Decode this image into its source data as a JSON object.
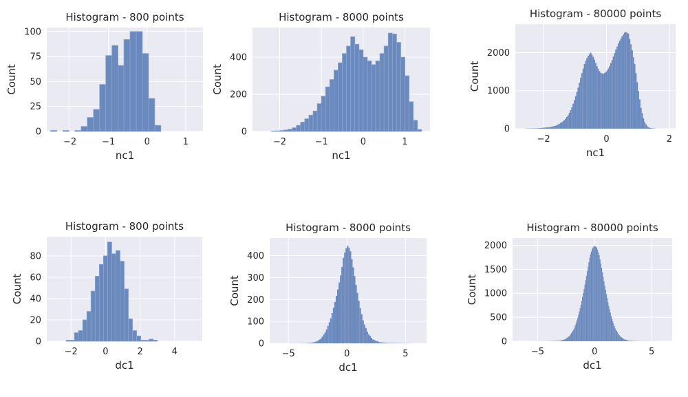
{
  "chart_data": [
    {
      "type": "bar",
      "title": "Histogram - 800 points",
      "xlabel": "nc1",
      "ylabel": "Count",
      "xlim": [
        -2.6,
        1.45
      ],
      "ylim": [
        0,
        104
      ],
      "xticks": [
        -2,
        -1,
        0,
        1
      ],
      "yticks": [
        0,
        25,
        50,
        75,
        100
      ],
      "bin_width": 0.1585,
      "grid": true,
      "bins": [
        [
          -2.5,
          1
        ],
        [
          -2.34,
          0
        ],
        [
          -2.18,
          1
        ],
        [
          -2.02,
          0
        ],
        [
          -1.87,
          1
        ],
        [
          -1.71,
          5
        ],
        [
          -1.55,
          14
        ],
        [
          -1.39,
          22
        ],
        [
          -1.23,
          47
        ],
        [
          -1.07,
          76
        ],
        [
          -0.91,
          86
        ],
        [
          -0.75,
          66
        ],
        [
          -0.6,
          92
        ],
        [
          -0.44,
          100
        ],
        [
          -0.28,
          100
        ],
        [
          -0.12,
          78
        ],
        [
          0.04,
          33
        ],
        [
          0.2,
          6
        ],
        [
          0.36,
          0
        ],
        [
          0.52,
          0
        ]
      ]
    },
    {
      "type": "bar",
      "title": "Histogram - 8000 points",
      "xlabel": "nc1",
      "ylabel": "Count",
      "xlim": [
        -2.65,
        1.6
      ],
      "ylim": [
        0,
        560
      ],
      "xticks": [
        -2,
        -1,
        0,
        1
      ],
      "yticks": [
        0,
        200,
        400
      ],
      "bin_width": 0.1,
      "grid": true,
      "bins": [
        [
          -2.2,
          2
        ],
        [
          -2.1,
          3
        ],
        [
          -2.0,
          5
        ],
        [
          -1.9,
          8
        ],
        [
          -1.8,
          12
        ],
        [
          -1.7,
          20
        ],
        [
          -1.6,
          33
        ],
        [
          -1.5,
          50
        ],
        [
          -1.4,
          68
        ],
        [
          -1.3,
          88
        ],
        [
          -1.2,
          110
        ],
        [
          -1.1,
          150
        ],
        [
          -1.0,
          190
        ],
        [
          -0.9,
          240
        ],
        [
          -0.8,
          280
        ],
        [
          -0.7,
          330
        ],
        [
          -0.6,
          370
        ],
        [
          -0.5,
          420
        ],
        [
          -0.4,
          460
        ],
        [
          -0.3,
          510
        ],
        [
          -0.2,
          470
        ],
        [
          -0.1,
          440
        ],
        [
          0.0,
          400
        ],
        [
          0.1,
          380
        ],
        [
          0.2,
          360
        ],
        [
          0.3,
          380
        ],
        [
          0.4,
          420
        ],
        [
          0.5,
          460
        ],
        [
          0.6,
          530
        ],
        [
          0.7,
          525
        ],
        [
          0.8,
          480
        ],
        [
          0.9,
          400
        ],
        [
          1.0,
          300
        ],
        [
          1.1,
          160
        ],
        [
          1.2,
          60
        ],
        [
          1.3,
          10
        ]
      ]
    },
    {
      "type": "bar",
      "title": "Histogram - 80000 points",
      "xlabel": "nc1",
      "ylabel": "Count",
      "xlim": [
        -2.9,
        2.2
      ],
      "ylim": [
        0,
        2750
      ],
      "xticks": [
        -2,
        0,
        2
      ],
      "yticks": [
        0,
        1000,
        2000
      ],
      "bin_width": 0.04,
      "grid": true,
      "curve": [
        [
          -2.6,
          3
        ],
        [
          -2.2,
          10
        ],
        [
          -1.8,
          40
        ],
        [
          -1.6,
          80
        ],
        [
          -1.4,
          180
        ],
        [
          -1.3,
          260
        ],
        [
          -1.2,
          380
        ],
        [
          -1.1,
          560
        ],
        [
          -1.0,
          800
        ],
        [
          -0.9,
          1080
        ],
        [
          -0.8,
          1400
        ],
        [
          -0.7,
          1700
        ],
        [
          -0.6,
          1900
        ],
        [
          -0.5,
          2000
        ],
        [
          -0.4,
          1860
        ],
        [
          -0.3,
          1640
        ],
        [
          -0.2,
          1480
        ],
        [
          -0.1,
          1440
        ],
        [
          0.0,
          1500
        ],
        [
          0.1,
          1640
        ],
        [
          0.2,
          1850
        ],
        [
          0.3,
          2080
        ],
        [
          0.4,
          2280
        ],
        [
          0.5,
          2430
        ],
        [
          0.6,
          2550
        ],
        [
          0.7,
          2500
        ],
        [
          0.8,
          2150
        ],
        [
          0.9,
          1700
        ],
        [
          1.0,
          1100
        ],
        [
          1.1,
          550
        ],
        [
          1.2,
          200
        ],
        [
          1.3,
          60
        ],
        [
          1.4,
          15
        ],
        [
          1.6,
          0
        ]
      ]
    },
    {
      "type": "bar",
      "title": "Histogram - 800 points",
      "xlabel": "dc1",
      "ylabel": "Count",
      "xlim": [
        -3.4,
        5.6
      ],
      "ylim": [
        0,
        98
      ],
      "xticks": [
        -2,
        0,
        2,
        4
      ],
      "yticks": [
        0,
        20,
        40,
        60,
        80
      ],
      "bin_width": 0.24,
      "grid": true,
      "bins": [
        [
          -2.28,
          1
        ],
        [
          -2.04,
          1
        ],
        [
          -1.8,
          8
        ],
        [
          -1.56,
          10
        ],
        [
          -1.32,
          20
        ],
        [
          -1.08,
          28
        ],
        [
          -0.84,
          47
        ],
        [
          -0.6,
          61
        ],
        [
          -0.36,
          72
        ],
        [
          -0.12,
          80
        ],
        [
          0.12,
          93
        ],
        [
          0.36,
          82
        ],
        [
          0.6,
          85
        ],
        [
          0.84,
          75
        ],
        [
          1.08,
          49
        ],
        [
          1.32,
          21
        ],
        [
          1.56,
          10
        ],
        [
          1.8,
          5
        ],
        [
          2.04,
          1
        ],
        [
          2.28,
          1
        ],
        [
          2.52,
          2
        ],
        [
          2.76,
          1
        ],
        [
          3.0,
          0
        ],
        [
          3.24,
          0
        ],
        [
          3.48,
          0
        ]
      ]
    },
    {
      "type": "bar",
      "title": "Histogram - 8000 points",
      "xlabel": "dc1",
      "ylabel": "Count",
      "xlim": [
        -6.6,
        6.8
      ],
      "ylim": [
        0,
        480
      ],
      "xticks": [
        -5,
        0,
        5
      ],
      "yticks": [
        0,
        100,
        200,
        300,
        400
      ],
      "bin_width": 0.12,
      "grid": true,
      "curve": [
        [
          -6.0,
          0
        ],
        [
          -3.5,
          1
        ],
        [
          -3.0,
          3
        ],
        [
          -2.6,
          8
        ],
        [
          -2.2,
          22
        ],
        [
          -1.8,
          55
        ],
        [
          -1.4,
          110
        ],
        [
          -1.1,
          170
        ],
        [
          -0.8,
          240
        ],
        [
          -0.5,
          320
        ],
        [
          -0.3,
          390
        ],
        [
          -0.1,
          430
        ],
        [
          0.1,
          448
        ],
        [
          0.3,
          420
        ],
        [
          0.5,
          360
        ],
        [
          0.8,
          260
        ],
        [
          1.1,
          170
        ],
        [
          1.4,
          100
        ],
        [
          1.8,
          45
        ],
        [
          2.2,
          18
        ],
        [
          2.8,
          5
        ],
        [
          3.5,
          2
        ],
        [
          5.0,
          1
        ],
        [
          6.0,
          0
        ]
      ]
    },
    {
      "type": "bar",
      "title": "Histogram - 80000 points",
      "xlabel": "dc1",
      "ylabel": "Count",
      "xlim": [
        -7.2,
        6.8
      ],
      "ylim": [
        0,
        2150
      ],
      "xticks": [
        -5,
        0,
        5
      ],
      "yticks": [
        0,
        500,
        1000,
        1500,
        2000
      ],
      "bin_width": 0.07,
      "grid": true,
      "curve": [
        [
          -6.0,
          0
        ],
        [
          -4.0,
          2
        ],
        [
          -3.0,
          12
        ],
        [
          -2.6,
          40
        ],
        [
          -2.2,
          110
        ],
        [
          -1.8,
          260
        ],
        [
          -1.5,
          470
        ],
        [
          -1.2,
          760
        ],
        [
          -0.9,
          1120
        ],
        [
          -0.6,
          1520
        ],
        [
          -0.4,
          1790
        ],
        [
          -0.2,
          1940
        ],
        [
          0.0,
          1990
        ],
        [
          0.2,
          1950
        ],
        [
          0.4,
          1800
        ],
        [
          0.6,
          1550
        ],
        [
          0.9,
          1150
        ],
        [
          1.2,
          780
        ],
        [
          1.5,
          480
        ],
        [
          1.8,
          270
        ],
        [
          2.2,
          110
        ],
        [
          2.6,
          40
        ],
        [
          3.0,
          12
        ],
        [
          4.0,
          2
        ],
        [
          6.0,
          0
        ]
      ]
    }
  ]
}
